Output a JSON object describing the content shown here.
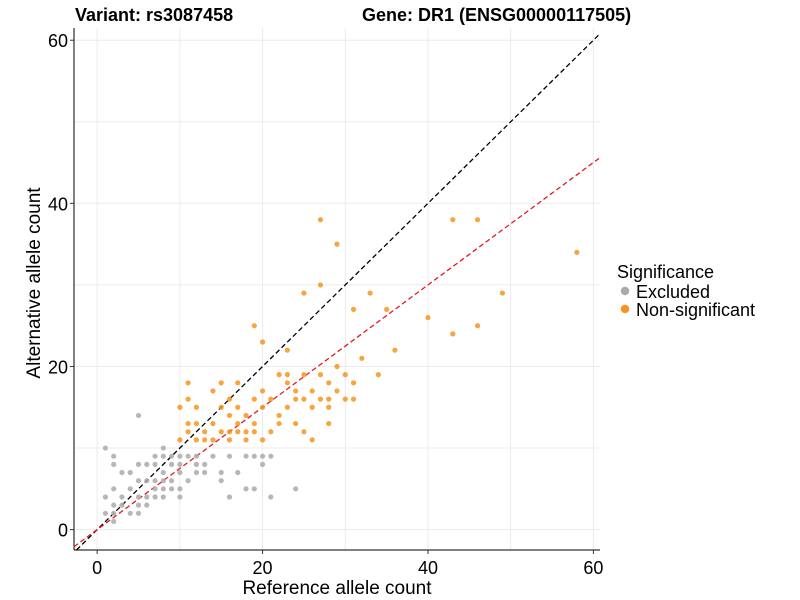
{
  "chart_data": {
    "type": "scatter",
    "title_left": "Variant: rs3087458",
    "title_right": "Gene: DR1 (ENSG00000117505)",
    "xlabel": "Reference allele count",
    "ylabel": "Alternative allele count",
    "xlim": [
      -2.8,
      60.8
    ],
    "ylim": [
      -2.5,
      61.5
    ],
    "xticks": [
      0,
      20,
      40,
      60
    ],
    "yticks": [
      0,
      20,
      40,
      60
    ],
    "grid": true,
    "reference_lines": [
      {
        "name": "identity",
        "slope": 1.0,
        "intercept": 0,
        "color": "#000000",
        "style": "dashed"
      },
      {
        "name": "expected-ratio",
        "slope": 0.75,
        "intercept": 0,
        "color": "#e41a1c",
        "style": "dashed"
      }
    ],
    "legend": {
      "title": "Significance",
      "position": "right",
      "entries": [
        {
          "label": "Excluded",
          "color": "#aaaaaa"
        },
        {
          "label": "Non-significant",
          "color": "#f7941d"
        }
      ]
    },
    "series": [
      {
        "name": "Excluded",
        "color": "#aaaaaa",
        "points": [
          [
            1,
            10
          ],
          [
            1,
            4
          ],
          [
            1,
            2
          ],
          [
            2,
            9
          ],
          [
            2,
            8
          ],
          [
            2,
            5
          ],
          [
            2,
            3
          ],
          [
            2,
            2
          ],
          [
            2,
            1
          ],
          [
            3,
            7
          ],
          [
            3,
            4
          ],
          [
            3,
            3
          ],
          [
            4,
            7
          ],
          [
            4,
            5
          ],
          [
            4,
            2
          ],
          [
            5,
            14
          ],
          [
            5,
            8
          ],
          [
            5,
            6
          ],
          [
            5,
            4
          ],
          [
            5,
            3
          ],
          [
            5,
            2
          ],
          [
            6,
            8
          ],
          [
            6,
            6
          ],
          [
            6,
            4
          ],
          [
            6,
            3
          ],
          [
            7,
            9
          ],
          [
            7,
            8
          ],
          [
            7,
            6
          ],
          [
            7,
            5
          ],
          [
            7,
            4
          ],
          [
            8,
            10
          ],
          [
            8,
            9
          ],
          [
            8,
            7
          ],
          [
            8,
            6
          ],
          [
            8,
            5
          ],
          [
            8,
            4
          ],
          [
            9,
            9
          ],
          [
            9,
            8
          ],
          [
            9,
            6
          ],
          [
            9,
            5
          ],
          [
            10,
            9
          ],
          [
            10,
            8
          ],
          [
            10,
            7
          ],
          [
            10,
            5
          ],
          [
            10,
            4
          ],
          [
            11,
            9
          ],
          [
            11,
            6
          ],
          [
            12,
            9
          ],
          [
            12,
            8
          ],
          [
            12,
            7
          ],
          [
            13,
            8
          ],
          [
            13,
            7
          ],
          [
            14,
            9
          ],
          [
            15,
            6
          ],
          [
            15,
            7
          ],
          [
            16,
            9
          ],
          [
            16,
            4
          ],
          [
            17,
            7
          ],
          [
            18,
            9
          ],
          [
            18,
            5
          ],
          [
            19,
            9
          ],
          [
            19,
            5
          ],
          [
            20,
            9
          ],
          [
            20,
            8
          ],
          [
            21,
            9
          ],
          [
            21,
            4
          ],
          [
            24,
            5
          ]
        ]
      },
      {
        "name": "Non-significant",
        "color": "#f7941d",
        "points": [
          [
            10,
            15
          ],
          [
            10,
            11
          ],
          [
            11,
            18
          ],
          [
            11,
            16
          ],
          [
            11,
            13
          ],
          [
            11,
            12
          ],
          [
            12,
            15
          ],
          [
            12,
            13
          ],
          [
            12,
            11
          ],
          [
            13,
            11
          ],
          [
            13,
            12
          ],
          [
            14,
            17
          ],
          [
            14,
            13
          ],
          [
            14,
            11
          ],
          [
            15,
            18
          ],
          [
            15,
            15
          ],
          [
            15,
            12
          ],
          [
            16,
            16
          ],
          [
            16,
            14
          ],
          [
            16,
            12
          ],
          [
            16,
            11
          ],
          [
            17,
            18
          ],
          [
            17,
            15
          ],
          [
            17,
            13
          ],
          [
            17,
            12
          ],
          [
            18,
            14
          ],
          [
            18,
            12
          ],
          [
            18,
            11
          ],
          [
            19,
            25
          ],
          [
            19,
            16
          ],
          [
            19,
            13
          ],
          [
            19,
            12
          ],
          [
            20,
            23
          ],
          [
            20,
            17
          ],
          [
            20,
            15
          ],
          [
            20,
            11
          ],
          [
            21,
            16
          ],
          [
            21,
            12
          ],
          [
            22,
            19
          ],
          [
            22,
            14
          ],
          [
            22,
            13
          ],
          [
            23,
            22
          ],
          [
            23,
            19
          ],
          [
            23,
            18
          ],
          [
            23,
            15
          ],
          [
            24,
            17
          ],
          [
            24,
            16
          ],
          [
            24,
            13
          ],
          [
            25,
            29
          ],
          [
            25,
            19
          ],
          [
            25,
            16
          ],
          [
            25,
            12
          ],
          [
            26,
            17
          ],
          [
            26,
            15
          ],
          [
            26,
            11
          ],
          [
            27,
            38
          ],
          [
            27,
            30
          ],
          [
            27,
            19
          ],
          [
            27,
            16
          ],
          [
            28,
            18
          ],
          [
            28,
            16
          ],
          [
            28,
            15
          ],
          [
            28,
            13
          ],
          [
            29,
            35
          ],
          [
            29,
            20
          ],
          [
            29,
            17
          ],
          [
            30,
            19
          ],
          [
            30,
            16
          ],
          [
            31,
            27
          ],
          [
            31,
            18
          ],
          [
            31,
            16
          ],
          [
            32,
            21
          ],
          [
            33,
            29
          ],
          [
            34,
            19
          ],
          [
            35,
            27
          ],
          [
            36,
            22
          ],
          [
            40,
            26
          ],
          [
            43,
            38
          ],
          [
            43,
            24
          ],
          [
            46,
            38
          ],
          [
            46,
            25
          ],
          [
            49,
            29
          ],
          [
            58,
            34
          ]
        ]
      }
    ]
  }
}
